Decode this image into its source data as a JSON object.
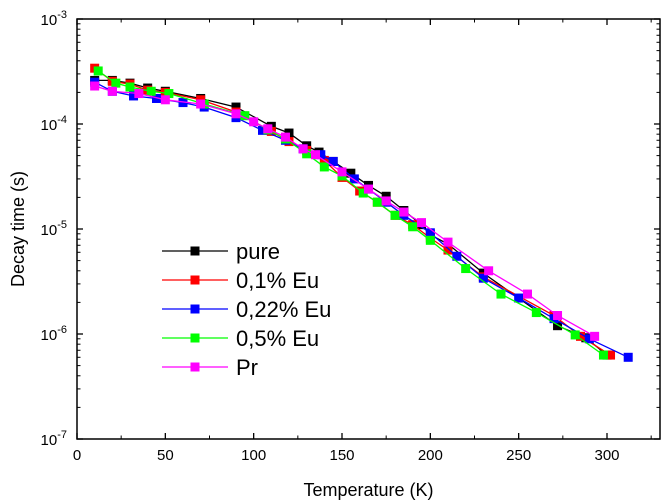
{
  "chart_data": {
    "type": "line",
    "xlabel": "Temperature (K)",
    "ylabel": "Decay time (s)",
    "xlim": [
      0,
      330
    ],
    "ylim": [
      1e-07,
      0.001
    ],
    "yscale": "log",
    "x_ticks": [
      0,
      50,
      100,
      150,
      200,
      250,
      300
    ],
    "x_tick_labels": [
      "0",
      "50",
      "100",
      "150",
      "200",
      "250",
      "300"
    ],
    "y_ticks": [
      {
        "value": 1e-07,
        "mantissa": "10",
        "exp": "-7"
      },
      {
        "value": 1e-06,
        "mantissa": "10",
        "exp": "-6"
      },
      {
        "value": 1e-05,
        "mantissa": "10",
        "exp": "-5"
      },
      {
        "value": 0.0001,
        "mantissa": "10",
        "exp": "-4"
      },
      {
        "value": 0.001,
        "mantissa": "10",
        "exp": "-3"
      }
    ],
    "legend_position": "bottom-left",
    "series": [
      {
        "name": "pure",
        "color": "#000000",
        "x": [
          10,
          20,
          30,
          40,
          50,
          70,
          90,
          110,
          120,
          130,
          137,
          145,
          155,
          165,
          175,
          185,
          195,
          200,
          210,
          230,
          272,
          288,
          300
        ],
        "y": [
          0.00026,
          0.00026,
          0.000245,
          0.00022,
          0.000205,
          0.000175,
          0.000145,
          9.5e-05,
          8.2e-05,
          6.2e-05,
          5.4e-05,
          4.4e-05,
          3.4e-05,
          2.6e-05,
          2.05e-05,
          1.5e-05,
          1.1e-05,
          8.8e-06,
          7.2e-06,
          3.8e-06,
          1.2e-06,
          9.2e-07,
          6.3e-07
        ]
      },
      {
        "name": "0,1% Eu",
        "color": "#ff0000",
        "x": [
          10,
          20,
          30,
          40,
          50,
          70,
          90,
          110,
          120,
          130,
          140,
          150,
          160,
          170,
          180,
          190,
          200,
          210,
          230,
          270,
          285,
          302
        ],
        "y": [
          0.00034,
          0.000255,
          0.00024,
          0.00021,
          0.0002,
          0.00017,
          0.00013,
          8.5e-05,
          6.8e-05,
          5.6e-05,
          4.5e-05,
          3.1e-05,
          2.3e-05,
          1.8e-05,
          1.35e-05,
          1.1e-05,
          8.2e-06,
          6.3e-06,
          3.5e-06,
          1.5e-06,
          9.5e-07,
          6.3e-07
        ]
      },
      {
        "name": "0,22% Eu",
        "color": "#0000ff",
        "x": [
          10,
          20,
          32,
          45,
          60,
          72,
          90,
          105,
          118,
          128,
          138,
          145,
          157,
          165,
          175,
          185,
          200,
          215,
          230,
          250,
          270,
          290,
          312
        ],
        "y": [
          0.00025,
          0.000205,
          0.000185,
          0.000175,
          0.00016,
          0.000145,
          0.000115,
          8.7e-05,
          7e-05,
          5.8e-05,
          5.1e-05,
          4.4e-05,
          3e-05,
          2.4e-05,
          1.8e-05,
          1.35e-05,
          9.2e-06,
          5.5e-06,
          3.4e-06,
          2.2e-06,
          1.4e-06,
          9e-07,
          6e-07
        ]
      },
      {
        "name": "0,5% Eu",
        "color": "#00ff00",
        "x": [
          12,
          22,
          30,
          42,
          52,
          72,
          95,
          108,
          118,
          130,
          140,
          150,
          162,
          170,
          180,
          190,
          200,
          220,
          240,
          260,
          282,
          298
        ],
        "y": [
          0.00032,
          0.000245,
          0.000225,
          0.000205,
          0.000195,
          0.000155,
          0.00012,
          8.8e-05,
          7.2e-05,
          5.2e-05,
          3.9e-05,
          3.2e-05,
          2.2e-05,
          1.8e-05,
          1.35e-05,
          1.05e-05,
          7.8e-06,
          4.2e-06,
          2.4e-06,
          1.6e-06,
          9.8e-07,
          6.3e-07
        ]
      },
      {
        "name": "Pr",
        "color": "#ff00ff",
        "x": [
          10,
          20,
          35,
          50,
          70,
          90,
          100,
          108,
          118,
          128,
          135,
          150,
          165,
          175,
          185,
          195,
          210,
          233,
          255,
          272,
          293
        ],
        "y": [
          0.00023,
          0.000205,
          0.000195,
          0.00017,
          0.000155,
          0.000125,
          0.000105,
          9e-05,
          7.5e-05,
          5.8e-05,
          5.1e-05,
          3.5e-05,
          2.4e-05,
          1.85e-05,
          1.45e-05,
          1.15e-05,
          7.5e-06,
          4e-06,
          2.4e-06,
          1.5e-06,
          9.5e-07
        ]
      }
    ]
  }
}
